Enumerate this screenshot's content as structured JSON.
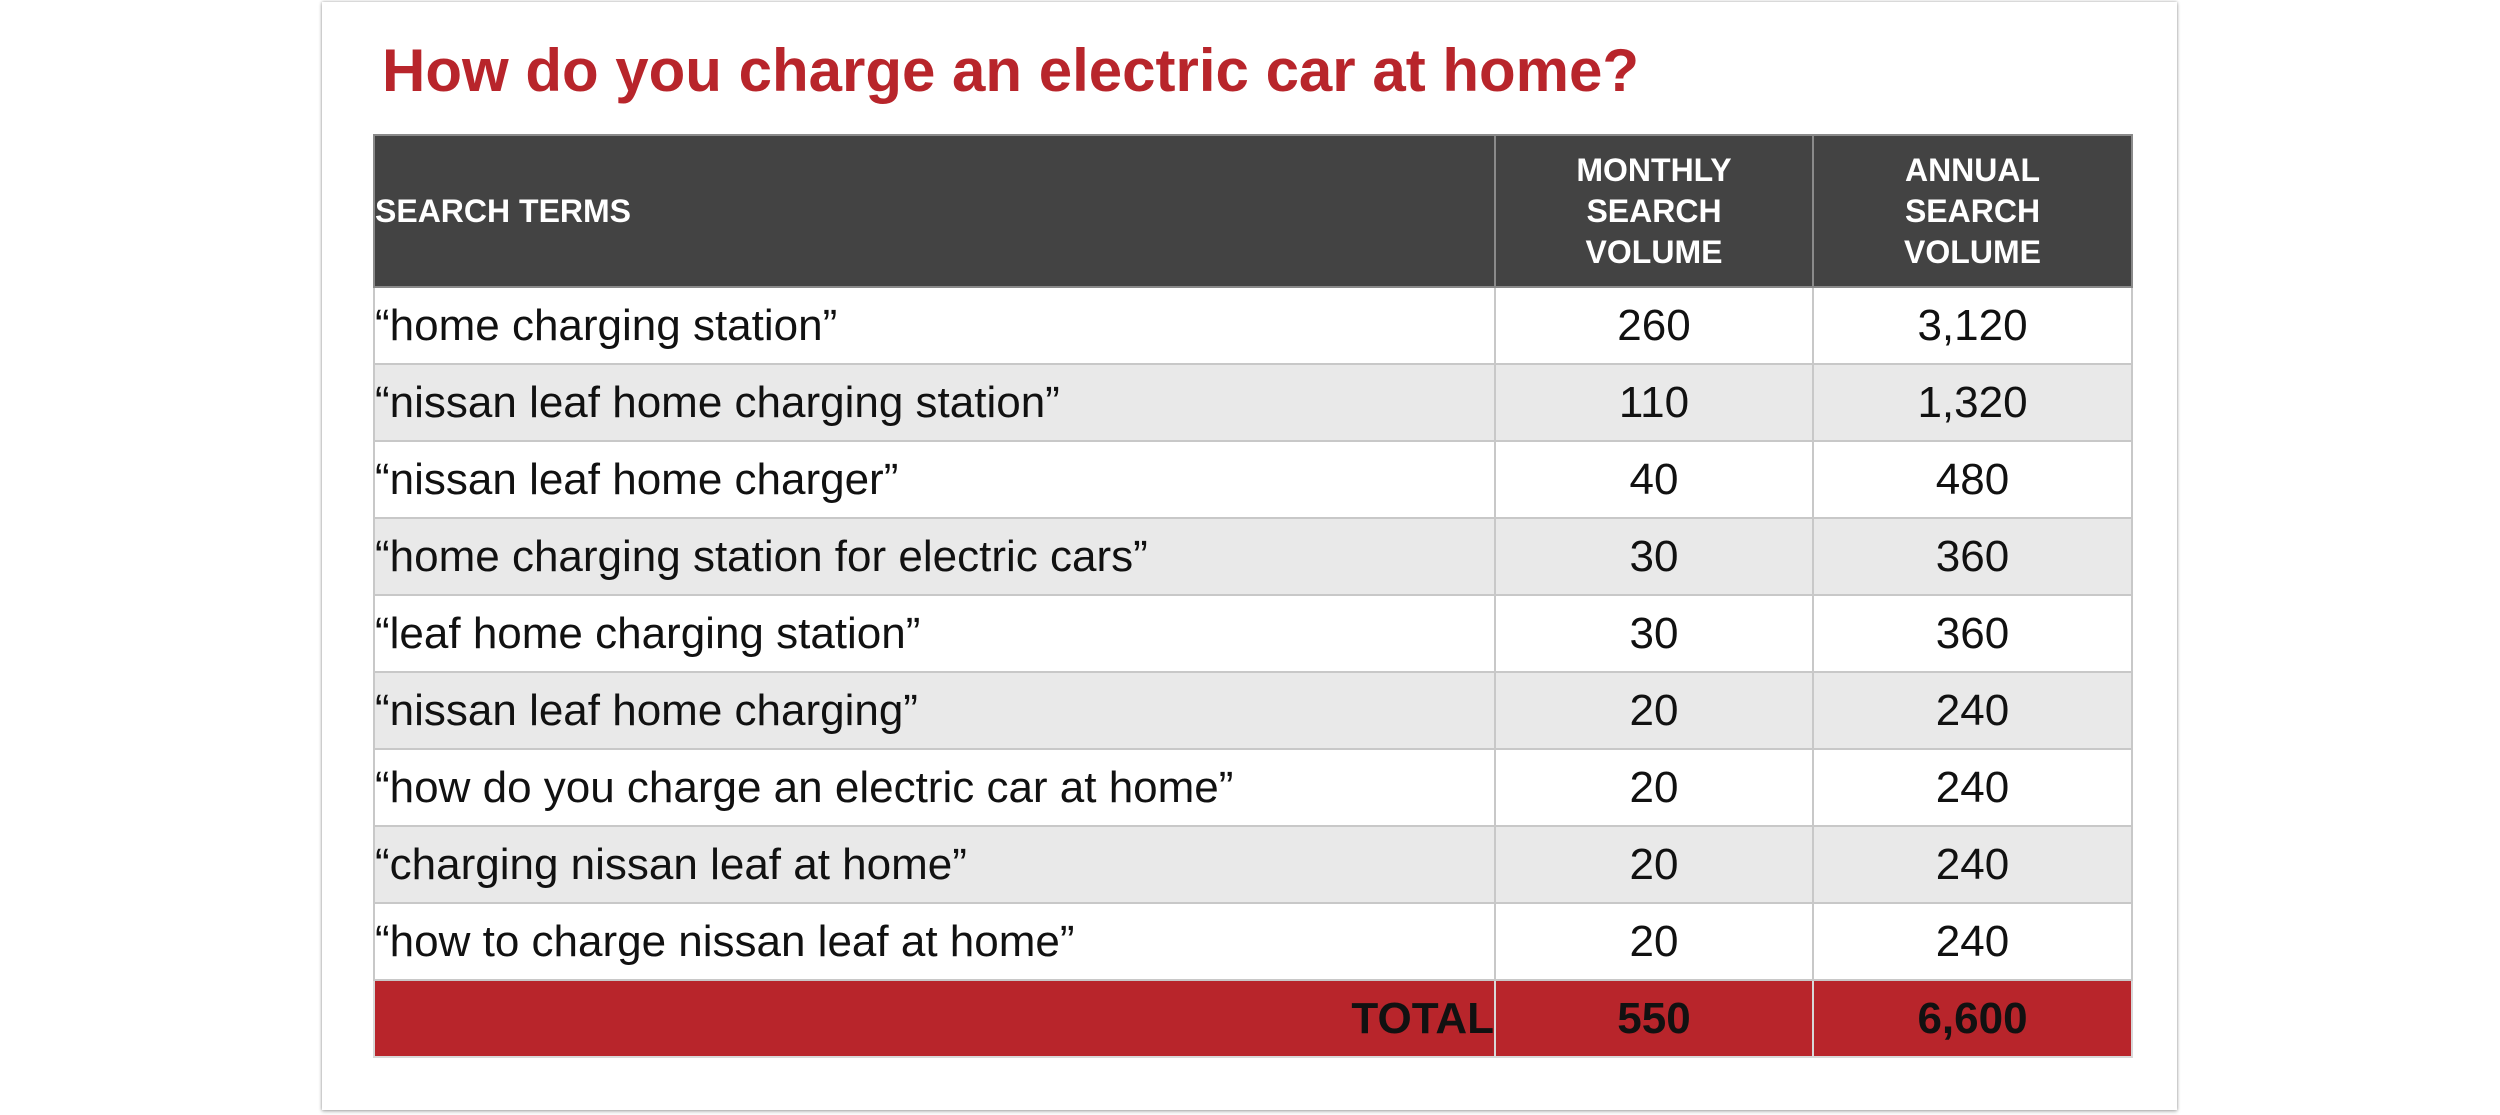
{
  "title": "How do you charge an electric car at home?",
  "table": {
    "headers": {
      "terms": "SEARCH TERMS",
      "monthly": [
        "MONTHLY",
        "SEARCH",
        "VOLUME"
      ],
      "annual": [
        "ANNUAL",
        "SEARCH",
        "VOLUME"
      ]
    },
    "rows": [
      {
        "term": "“home charging station”",
        "monthly": "260",
        "annual": "3,120"
      },
      {
        "term": "“nissan leaf home charging station”",
        "monthly": "110",
        "annual": "1,320"
      },
      {
        "term": "“nissan leaf home charger”",
        "monthly": "40",
        "annual": "480"
      },
      {
        "term": "“home charging station for electric cars”",
        "monthly": "30",
        "annual": "360"
      },
      {
        "term": "“leaf home charging station”",
        "monthly": "30",
        "annual": "360"
      },
      {
        "term": "“nissan leaf home charging”",
        "monthly": "20",
        "annual": "240"
      },
      {
        "term": "“how do you charge an electric car at home”",
        "monthly": "20",
        "annual": "240"
      },
      {
        "term": "“charging nissan leaf at home”",
        "monthly": "20",
        "annual": "240"
      },
      {
        "term": "“how to charge nissan leaf at home”",
        "monthly": "20",
        "annual": "240"
      }
    ],
    "total": {
      "label": "TOTAL",
      "monthly": "550",
      "annual": "6,600"
    }
  },
  "colors": {
    "accent_red": "#b8252b",
    "header_gray": "#434343",
    "stripe_gray": "#e9e9e9"
  }
}
